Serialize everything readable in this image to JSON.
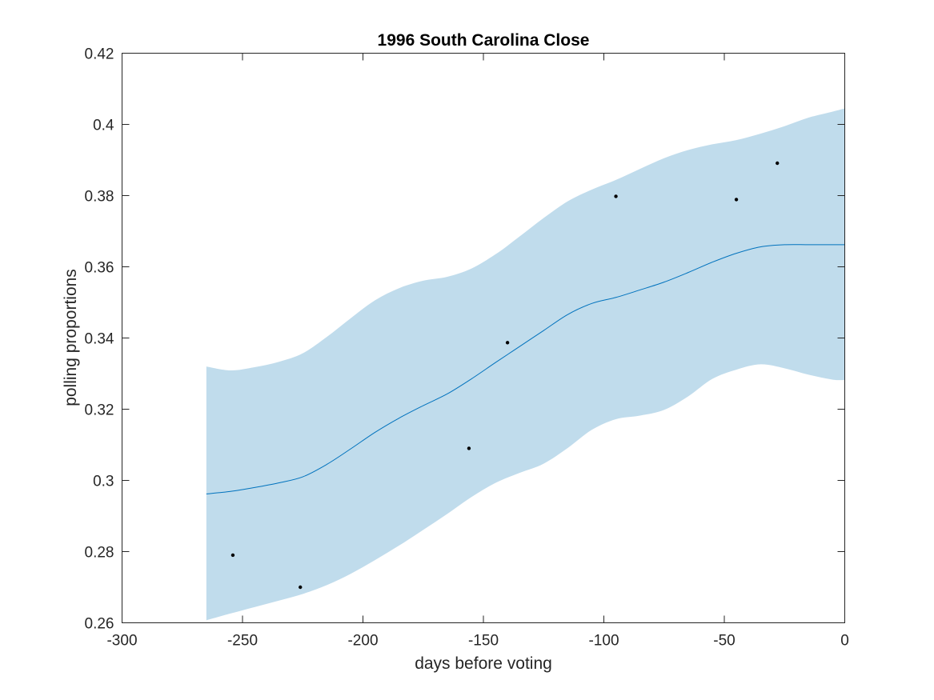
{
  "chart_data": {
    "type": "line",
    "title": "1996 South Carolina Close",
    "xlabel": "days before voting",
    "ylabel": "polling proportions",
    "xlim": [
      -300,
      0
    ],
    "ylim": [
      0.26,
      0.42
    ],
    "xticks": [
      -300,
      -250,
      -200,
      -150,
      -100,
      -50,
      0
    ],
    "xtick_labels": [
      "-300",
      "-250",
      "-200",
      "-150",
      "-100",
      "-50",
      "0"
    ],
    "yticks": [
      0.26,
      0.28,
      0.3,
      0.32,
      0.34,
      0.36,
      0.38,
      0.4,
      0.42
    ],
    "ytick_labels": [
      "0.26",
      "0.28",
      "0.3",
      "0.32",
      "0.34",
      "0.36",
      "0.38",
      "0.4",
      "0.42"
    ],
    "grid": false,
    "colors": {
      "band": "#c0dcec",
      "line": "#0072bd",
      "points": "#000000",
      "axes": "#262626"
    },
    "x": [
      -265,
      -255,
      -245,
      -235,
      -225,
      -215,
      -205,
      -195,
      -185,
      -175,
      -165,
      -155,
      -145,
      -135,
      -125,
      -115,
      -105,
      -95,
      -85,
      -75,
      -65,
      -55,
      -45,
      -35,
      -25,
      -15,
      -5,
      0
    ],
    "mean": [
      0.2962,
      0.2969,
      0.298,
      0.2993,
      0.301,
      0.3045,
      0.3089,
      0.3135,
      0.3175,
      0.321,
      0.3243,
      0.3285,
      0.3331,
      0.3376,
      0.3421,
      0.3466,
      0.3497,
      0.3514,
      0.3535,
      0.3557,
      0.3584,
      0.3613,
      0.3638,
      0.3656,
      0.3662,
      0.3662,
      0.3662,
      0.3662
    ],
    "upper": [
      0.332,
      0.3309,
      0.3318,
      0.3333,
      0.3357,
      0.3403,
      0.3456,
      0.3506,
      0.354,
      0.3561,
      0.3572,
      0.3595,
      0.3635,
      0.3685,
      0.3737,
      0.3784,
      0.3817,
      0.3844,
      0.3875,
      0.3905,
      0.3928,
      0.3944,
      0.3956,
      0.3974,
      0.3995,
      0.4019,
      0.4036,
      0.4045
    ],
    "lower": [
      0.2607,
      0.2626,
      0.2644,
      0.2662,
      0.2681,
      0.2706,
      0.2738,
      0.2776,
      0.2817,
      0.2861,
      0.2906,
      0.2953,
      0.2993,
      0.3021,
      0.3047,
      0.3091,
      0.3142,
      0.3172,
      0.3182,
      0.3198,
      0.3236,
      0.3285,
      0.3311,
      0.3326,
      0.3315,
      0.3297,
      0.3283,
      0.3282
    ],
    "points": [
      {
        "x": -254,
        "y": 0.279
      },
      {
        "x": -226,
        "y": 0.27
      },
      {
        "x": -156,
        "y": 0.309
      },
      {
        "x": -140,
        "y": 0.3387
      },
      {
        "x": -95,
        "y": 0.3798
      },
      {
        "x": -45,
        "y": 0.3789
      },
      {
        "x": -28,
        "y": 0.3891
      }
    ]
  }
}
